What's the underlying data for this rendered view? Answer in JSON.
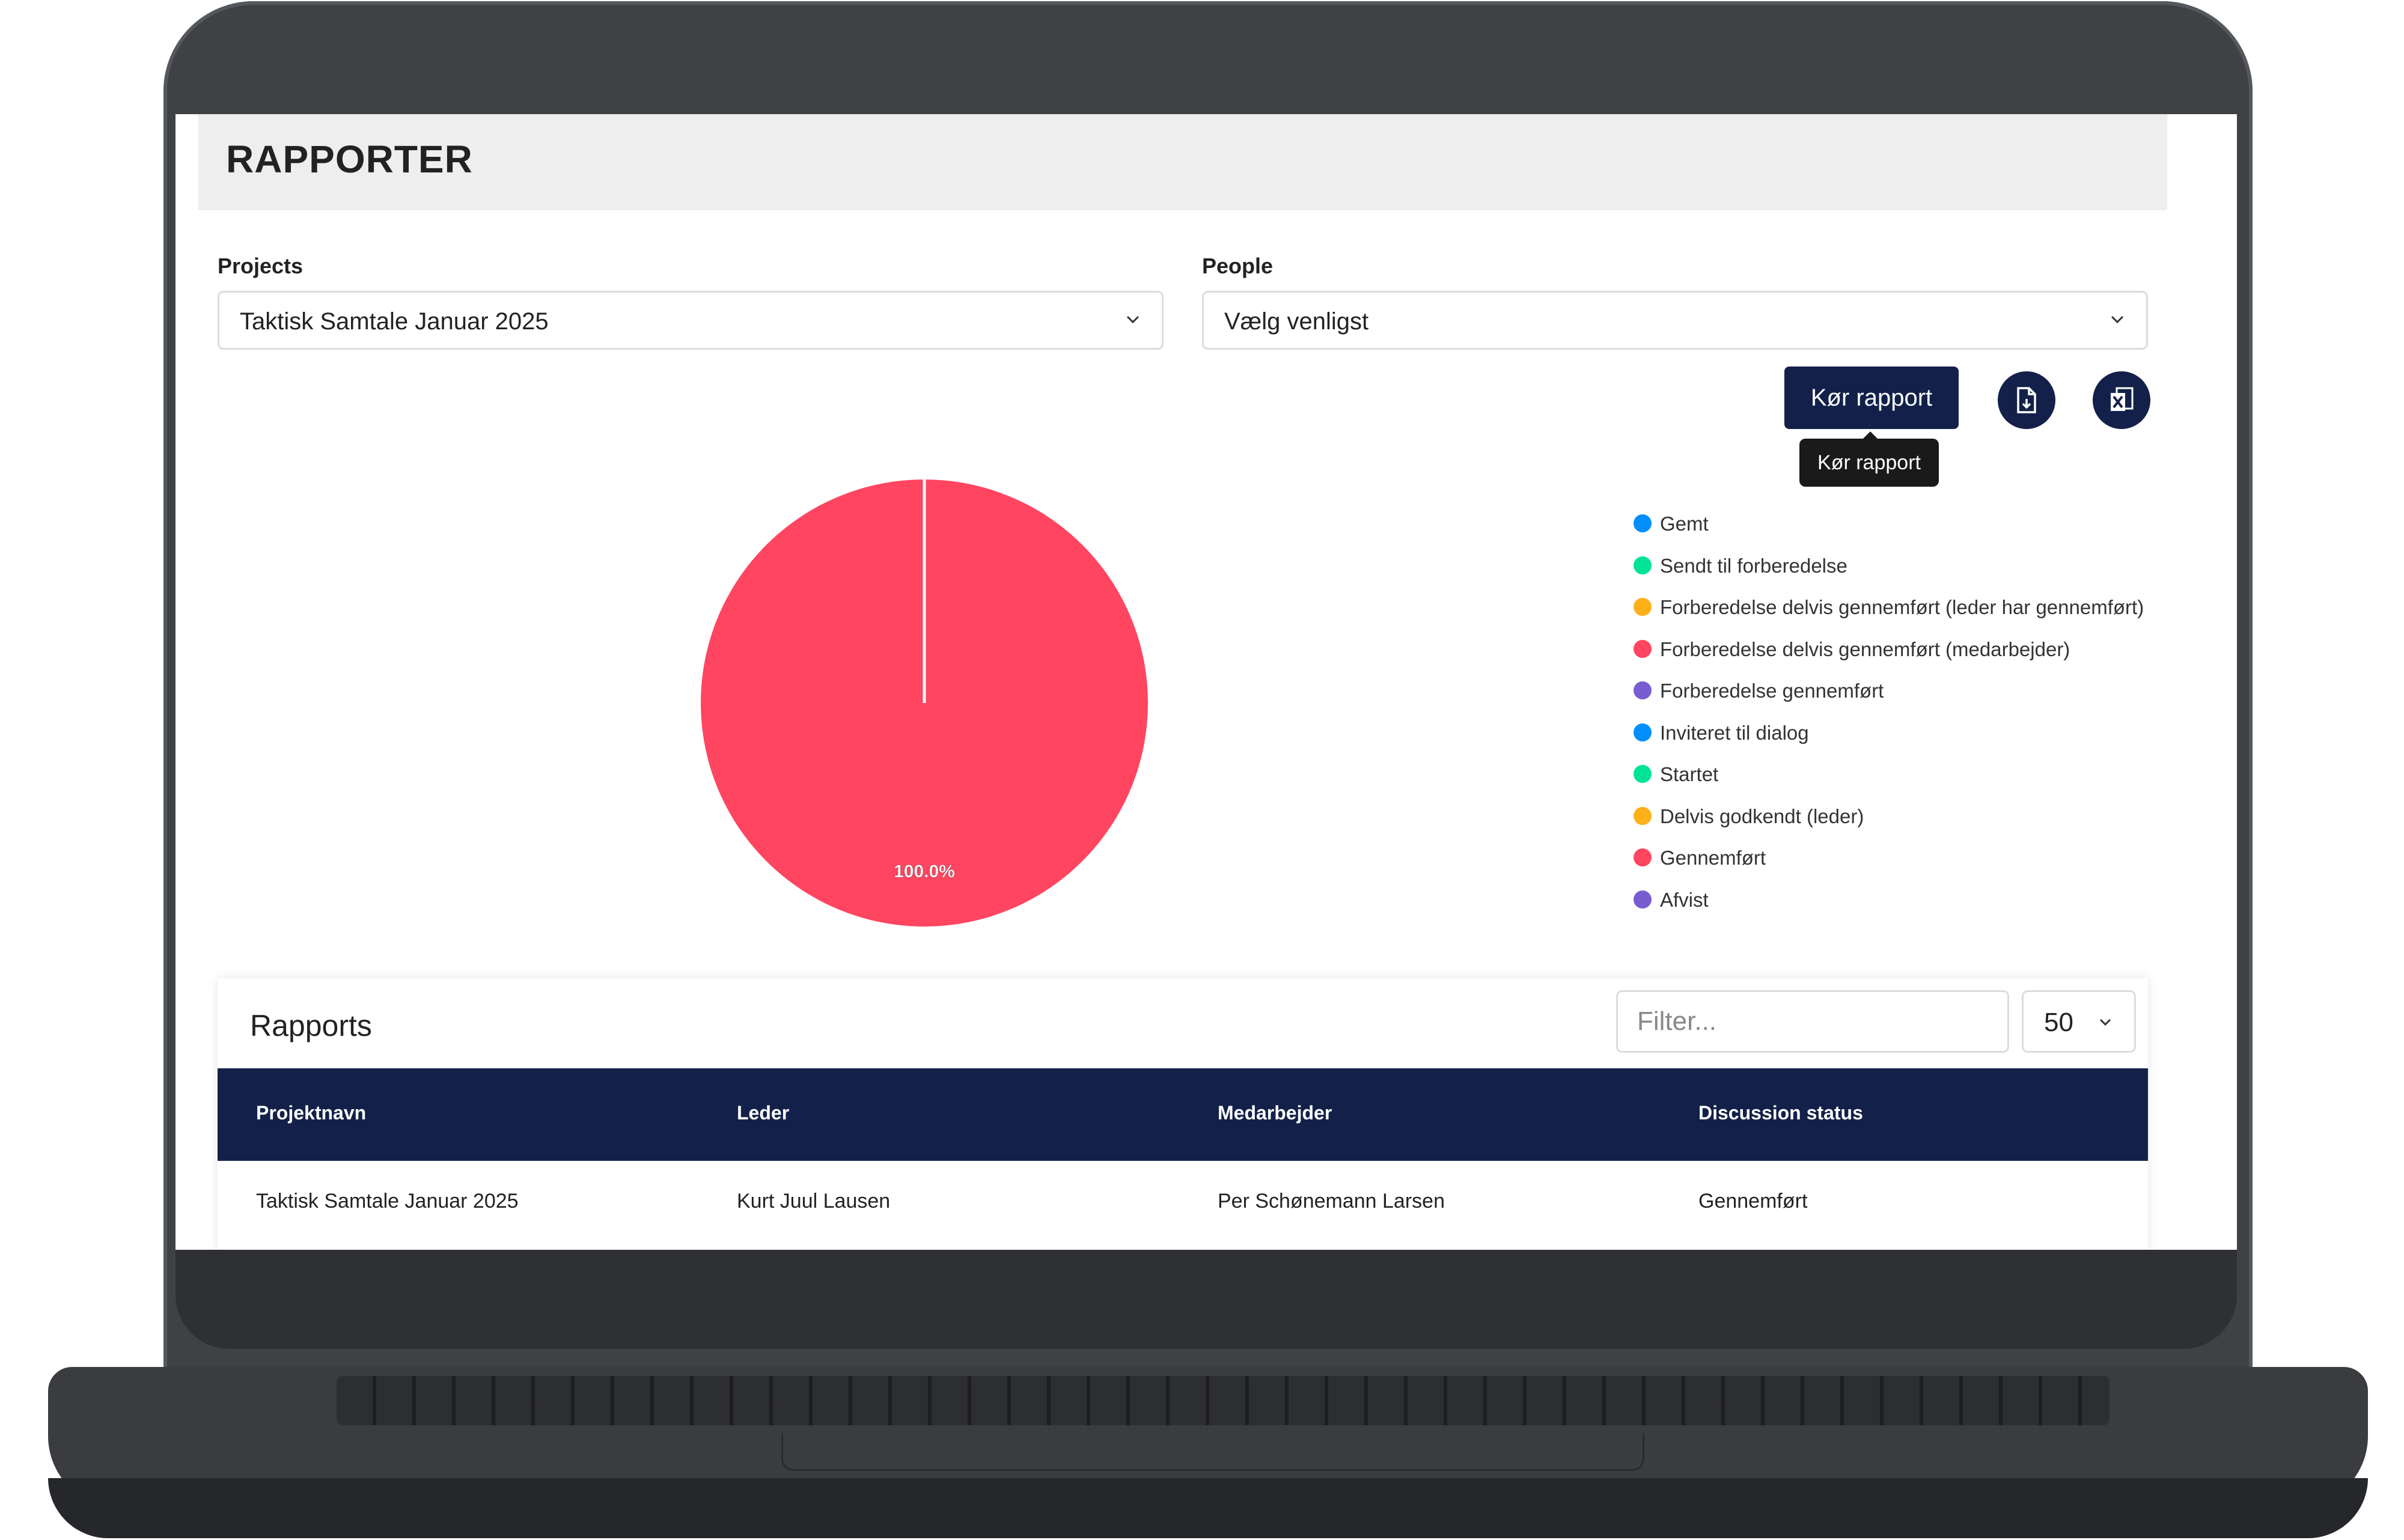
{
  "header": {
    "title": "RAPPORTER"
  },
  "filters": {
    "projects": {
      "label": "Projects",
      "value": "Taktisk Samtale Januar 2025"
    },
    "people": {
      "label": "People",
      "value": "Vælg venligst"
    }
  },
  "actions": {
    "run_label": "Kør rapport",
    "tooltip": "Kør rapport",
    "pdf_icon": "document-export-icon",
    "excel_icon": "excel-export-icon"
  },
  "chart_data": {
    "type": "pie",
    "slices": [
      {
        "label": "Gennemført",
        "value": 100.0,
        "display": "100.0%",
        "color": "#ff4560"
      }
    ],
    "legend": [
      {
        "label": "Gemt",
        "color": "#008ffb"
      },
      {
        "label": "Sendt til forberedelse",
        "color": "#00e396"
      },
      {
        "label": "Forberedelse delvis gennemført (leder har gennemført)",
        "color": "#feb019"
      },
      {
        "label": "Forberedelse delvis gennemført (medarbejder)",
        "color": "#ff4560"
      },
      {
        "label": "Forberedelse gennemført",
        "color": "#775dd0"
      },
      {
        "label": "Inviteret til dialog",
        "color": "#008ffb"
      },
      {
        "label": "Startet",
        "color": "#00e396"
      },
      {
        "label": "Delvis godkendt (leder)",
        "color": "#feb019"
      },
      {
        "label": "Gennemført",
        "color": "#ff4560"
      },
      {
        "label": "Afvist",
        "color": "#775dd0"
      }
    ],
    "legend_position": "right"
  },
  "table": {
    "title": "Rapports",
    "filter_placeholder": "Filter...",
    "per_page": "50",
    "columns": [
      "Projektnavn",
      "Leder",
      "Medarbejder",
      "Discussion status"
    ],
    "rows": [
      [
        "Taktisk Samtale Januar 2025",
        "Kurt Juul Lausen",
        "Per Schønemann Larsen",
        "Gennemført"
      ]
    ]
  },
  "colors": {
    "navy": "#13214a",
    "header_bg": "#eeeeee"
  }
}
